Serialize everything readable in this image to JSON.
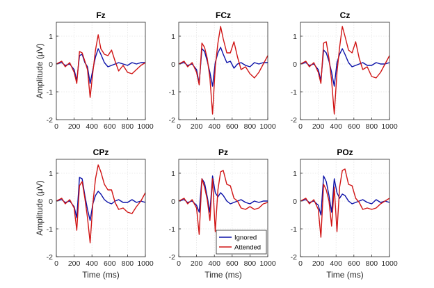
{
  "chart_data": {
    "type": "line",
    "xlabel": "Time (ms)",
    "ylabel": "Amplitude (μV)",
    "xlim": [
      0,
      1000
    ],
    "ylim": [
      -2,
      1.5
    ],
    "xticks": [
      0,
      200,
      400,
      600,
      800,
      1000
    ],
    "yticks": [
      -2,
      -1,
      0,
      1
    ],
    "grid": true,
    "legend": {
      "placement": "bottom-right of Pz panel",
      "entries": [
        "Ignored",
        "Attended"
      ]
    },
    "colors": {
      "Ignored": "#0a10a8",
      "Attended": "#d01414"
    },
    "panels": [
      {
        "title": "Fz",
        "series": [
          {
            "name": "Ignored",
            "x": [
              0,
              60,
              100,
              150,
              200,
              230,
              260,
              290,
              320,
              350,
              380,
              410,
              440,
              470,
              500,
              540,
              580,
              620,
              660,
              700,
              750,
              800,
              850,
              900,
              950,
              1000
            ],
            "y": [
              0,
              0.05,
              -0.05,
              0,
              -0.2,
              -0.6,
              0.3,
              0.35,
              0.05,
              -0.1,
              -0.7,
              -0.2,
              0.25,
              0.55,
              0.35,
              0.05,
              -0.1,
              -0.05,
              0,
              0.05,
              0,
              -0.05,
              0.05,
              0,
              0.05,
              0.05
            ]
          },
          {
            "name": "Attended",
            "x": [
              0,
              60,
              100,
              150,
              200,
              230,
              260,
              290,
              320,
              350,
              380,
              410,
              440,
              470,
              500,
              540,
              580,
              620,
              660,
              700,
              750,
              800,
              850,
              900,
              950,
              1000
            ],
            "y": [
              0,
              0.1,
              -0.1,
              0.05,
              -0.3,
              -0.7,
              0.45,
              0.4,
              0.1,
              -0.2,
              -1.2,
              -0.3,
              0.5,
              1.05,
              0.55,
              0.35,
              0.3,
              0.5,
              0.1,
              -0.25,
              -0.05,
              -0.3,
              -0.35,
              -0.2,
              -0.05,
              0.05
            ]
          }
        ]
      },
      {
        "title": "FCz",
        "series": [
          {
            "name": "Ignored",
            "x": [
              0,
              60,
              100,
              150,
              200,
              230,
              260,
              290,
              320,
              350,
              380,
              410,
              440,
              470,
              500,
              540,
              580,
              620,
              660,
              700,
              750,
              800,
              850,
              900,
              950,
              1000
            ],
            "y": [
              0,
              0.05,
              -0.05,
              0,
              -0.2,
              -0.7,
              0.55,
              0.45,
              0.1,
              -0.3,
              -0.8,
              0.05,
              0.4,
              0.6,
              0.35,
              0.05,
              0.1,
              -0.15,
              0,
              0.05,
              -0.05,
              -0.1,
              0.05,
              0,
              0.05,
              0.05
            ]
          },
          {
            "name": "Attended",
            "x": [
              0,
              60,
              100,
              150,
              200,
              230,
              260,
              290,
              320,
              350,
              380,
              410,
              440,
              470,
              500,
              540,
              580,
              620,
              660,
              700,
              750,
              800,
              850,
              900,
              950,
              1000
            ],
            "y": [
              0,
              0.1,
              -0.1,
              0.05,
              -0.3,
              -0.75,
              0.75,
              0.6,
              0.2,
              -0.5,
              -1.8,
              -0.1,
              0.75,
              1.35,
              0.9,
              0.4,
              0.4,
              0.8,
              0.25,
              -0.2,
              -0.1,
              -0.35,
              -0.5,
              -0.3,
              0,
              0.3
            ]
          }
        ]
      },
      {
        "title": "Cz",
        "series": [
          {
            "name": "Ignored",
            "x": [
              0,
              60,
              100,
              150,
              200,
              230,
              260,
              290,
              320,
              350,
              380,
              410,
              440,
              470,
              500,
              540,
              580,
              620,
              660,
              700,
              750,
              800,
              850,
              900,
              950,
              1000
            ],
            "y": [
              0,
              0.05,
              -0.05,
              0,
              -0.2,
              -0.6,
              0.5,
              0.4,
              0.1,
              -0.3,
              -0.8,
              0.05,
              0.35,
              0.55,
              0.35,
              0.05,
              -0.1,
              -0.05,
              0,
              0.05,
              -0.05,
              -0.05,
              0.05,
              0,
              0,
              0.05
            ]
          },
          {
            "name": "Attended",
            "x": [
              0,
              60,
              100,
              150,
              200,
              230,
              260,
              290,
              320,
              350,
              380,
              410,
              440,
              470,
              500,
              540,
              580,
              620,
              660,
              700,
              750,
              800,
              850,
              900,
              950,
              1000
            ],
            "y": [
              0,
              0.1,
              -0.1,
              0.05,
              -0.3,
              -0.7,
              0.75,
              0.8,
              0.2,
              -0.6,
              -1.8,
              -0.3,
              0.6,
              1.35,
              1.0,
              0.5,
              0.4,
              0.8,
              0.2,
              -0.2,
              -0.1,
              -0.45,
              -0.5,
              -0.3,
              0,
              0.3
            ]
          }
        ]
      },
      {
        "title": "CPz",
        "series": [
          {
            "name": "Ignored",
            "x": [
              0,
              60,
              100,
              150,
              200,
              230,
              260,
              290,
              320,
              350,
              380,
              410,
              440,
              470,
              500,
              540,
              580,
              620,
              660,
              700,
              750,
              800,
              850,
              900,
              950,
              1000
            ],
            "y": [
              0,
              0.05,
              -0.05,
              0,
              -0.2,
              -0.6,
              0.85,
              0.8,
              0.2,
              -0.3,
              -0.7,
              -0.1,
              0.2,
              0.35,
              0.25,
              0.05,
              -0.05,
              -0.1,
              0,
              0.05,
              -0.05,
              -0.05,
              0.05,
              -0.05,
              0,
              -0.05
            ]
          },
          {
            "name": "Attended",
            "x": [
              0,
              60,
              100,
              150,
              200,
              230,
              260,
              290,
              320,
              350,
              380,
              410,
              440,
              470,
              500,
              540,
              580,
              620,
              660,
              700,
              750,
              800,
              850,
              900,
              950,
              1000
            ],
            "y": [
              0,
              0.1,
              -0.1,
              0.05,
              -0.25,
              -1.05,
              0.55,
              0.7,
              0.1,
              -0.6,
              -1.5,
              -0.1,
              0.8,
              1.3,
              1.05,
              0.6,
              0.4,
              0.4,
              -0.05,
              -0.3,
              -0.25,
              -0.4,
              -0.45,
              -0.2,
              0,
              0.3
            ]
          }
        ]
      },
      {
        "title": "Pz",
        "series": [
          {
            "name": "Ignored",
            "x": [
              0,
              60,
              100,
              150,
              200,
              230,
              260,
              290,
              320,
              350,
              380,
              410,
              440,
              470,
              500,
              540,
              580,
              620,
              660,
              700,
              750,
              800,
              850,
              900,
              950,
              1000
            ],
            "y": [
              0,
              0.05,
              -0.05,
              0,
              -0.15,
              -0.4,
              0.8,
              0.65,
              0.15,
              -0.4,
              0.9,
              0.3,
              0.15,
              0.3,
              0.2,
              0,
              -0.1,
              -0.05,
              0,
              0.05,
              -0.05,
              -0.1,
              0,
              -0.05,
              0,
              0
            ]
          },
          {
            "name": "Attended",
            "x": [
              0,
              60,
              100,
              150,
              200,
              230,
              260,
              290,
              320,
              350,
              380,
              410,
              440,
              470,
              500,
              540,
              580,
              620,
              660,
              700,
              750,
              800,
              850,
              900,
              950,
              1000
            ],
            "y": [
              0,
              0.1,
              -0.1,
              0.05,
              -0.25,
              -1.2,
              0.8,
              0.5,
              0.05,
              -0.7,
              0.8,
              -1.1,
              0.4,
              1.05,
              1.1,
              0.6,
              0.55,
              0.1,
              0,
              -0.25,
              -0.3,
              -0.2,
              -0.3,
              -0.25,
              -0.1,
              -0.05
            ]
          }
        ]
      },
      {
        "title": "POz",
        "series": [
          {
            "name": "Ignored",
            "x": [
              0,
              60,
              100,
              150,
              200,
              230,
              260,
              290,
              320,
              350,
              380,
              410,
              440,
              470,
              500,
              540,
              580,
              620,
              660,
              700,
              750,
              800,
              850,
              900,
              950,
              1000
            ],
            "y": [
              0,
              0.05,
              -0.05,
              0,
              -0.15,
              -0.5,
              0.9,
              0.7,
              0.2,
              -0.4,
              0.8,
              0.3,
              0.1,
              0.25,
              0.2,
              0,
              -0.1,
              -0.05,
              0,
              0.05,
              -0.05,
              -0.1,
              0.05,
              -0.05,
              0,
              -0.05
            ]
          },
          {
            "name": "Attended",
            "x": [
              0,
              60,
              100,
              150,
              200,
              230,
              260,
              290,
              320,
              350,
              380,
              410,
              440,
              470,
              500,
              540,
              580,
              620,
              660,
              700,
              750,
              800,
              850,
              900,
              950,
              1000
            ],
            "y": [
              0,
              0.1,
              -0.1,
              0.05,
              -0.3,
              -1.3,
              0.6,
              0.4,
              0.0,
              -0.9,
              0.5,
              -1.1,
              0.5,
              1.1,
              1.15,
              0.6,
              0.55,
              0.1,
              -0.05,
              -0.3,
              -0.25,
              -0.3,
              -0.25,
              -0.1,
              0,
              0.1
            ]
          }
        ]
      }
    ]
  }
}
